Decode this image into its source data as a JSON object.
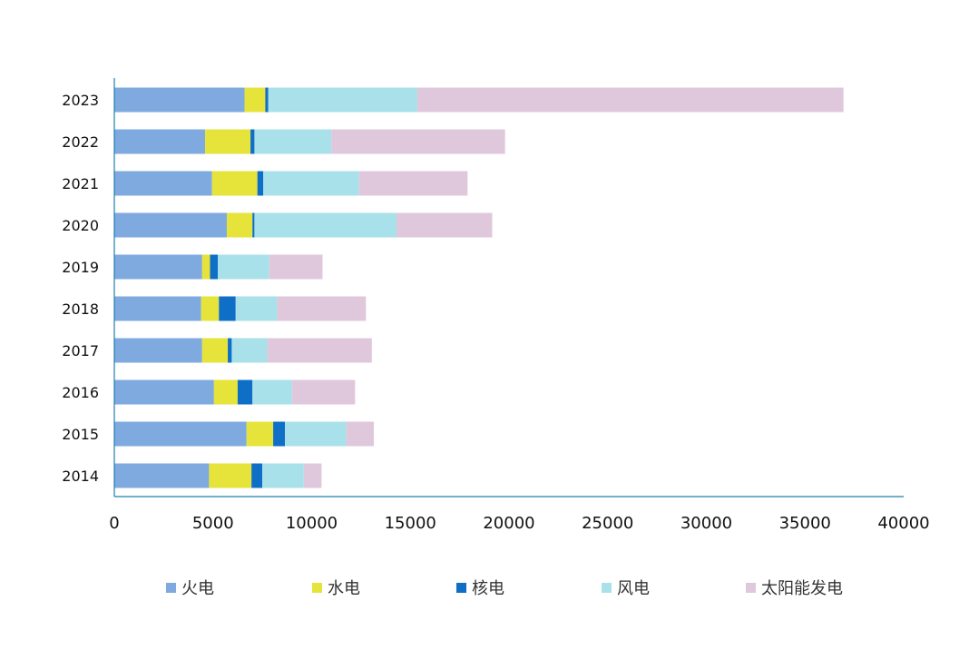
{
  "chart_data": {
    "type": "bar",
    "orientation": "horizontal",
    "stacked": true,
    "categories": [
      "2014",
      "2015",
      "2016",
      "2017",
      "2018",
      "2019",
      "2020",
      "2021",
      "2022",
      "2023"
    ],
    "series": [
      {
        "name": "火电",
        "color": "#7faadf",
        "values": [
          4800,
          6700,
          5050,
          4450,
          4400,
          4450,
          5700,
          4950,
          4600,
          6600
        ]
      },
      {
        "name": "水电",
        "color": "#e6e33b",
        "values": [
          2150,
          1350,
          1200,
          1300,
          900,
          400,
          1300,
          2300,
          2300,
          1050
        ]
      },
      {
        "name": "核电",
        "color": "#0f6fc6",
        "values": [
          550,
          600,
          750,
          200,
          850,
          400,
          100,
          300,
          200,
          150
        ]
      },
      {
        "name": "风电",
        "color": "#a8e1ea",
        "values": [
          2100,
          3100,
          2000,
          1800,
          2100,
          2600,
          7200,
          4850,
          3900,
          7550
        ]
      },
      {
        "name": "太阳能发电",
        "color": "#e0c8dc",
        "values": [
          900,
          1400,
          3200,
          5300,
          4500,
          2700,
          4850,
          5500,
          8800,
          21600
        ]
      }
    ],
    "xlim": [
      0,
      40000
    ],
    "xticks": [
      "0",
      "5000",
      "10000",
      "15000",
      "20000",
      "25000",
      "30000",
      "35000",
      "40000"
    ],
    "grid": false,
    "legend_position": "bottom",
    "axis_color": "#1f7fb0"
  }
}
